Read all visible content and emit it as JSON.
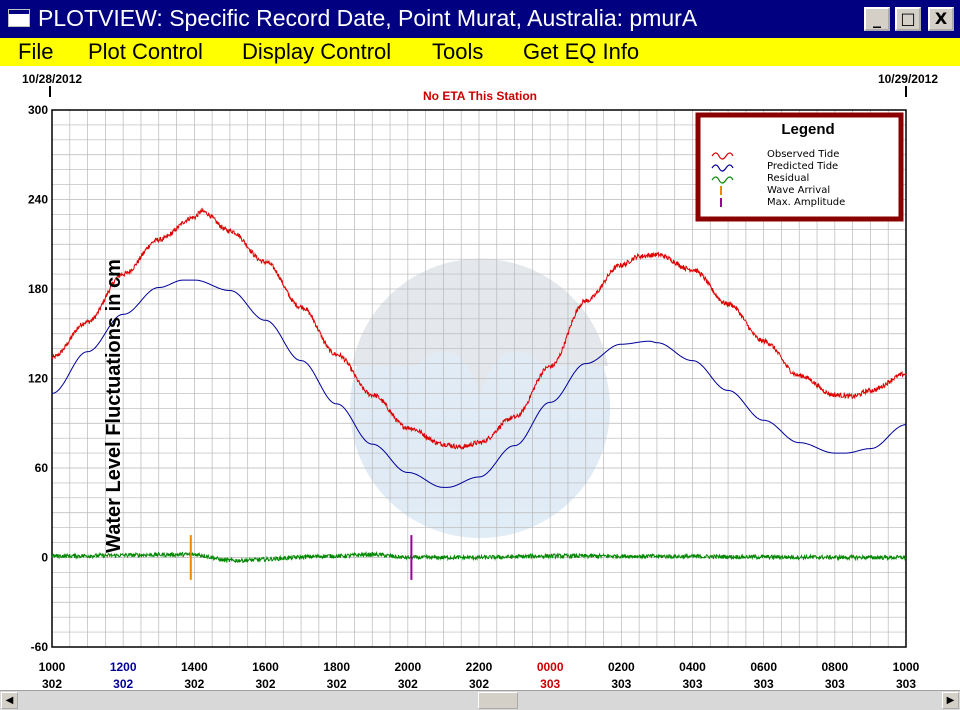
{
  "window": {
    "title": "PLOTVIEW: Specific Record Date, Point Murat, Australia: pmurA",
    "minimize_glyph": "_",
    "maximize_glyph": "□",
    "close_glyph": "X",
    "icon": "window-app-icon"
  },
  "menu": [
    "File",
    "Plot Control",
    "Display Control",
    "Tools",
    "Get EQ Info"
  ],
  "colors": {
    "titlebar": "#000080",
    "menubar": "#ffff00",
    "observed": "#dd0000",
    "predicted": "#000099",
    "residual": "#008800",
    "wave_arrival": "#ee8800",
    "max_amplitude": "#990099",
    "legend_border": "#8b0000",
    "blue_tick": "#000099",
    "red_tick": "#cc0000"
  },
  "chart_data": {
    "type": "line",
    "ylabel": "Water Level Fluctuations in cm",
    "ylim": [
      -60,
      300
    ],
    "yticks": [
      -60,
      0,
      60,
      120,
      180,
      240,
      300
    ],
    "x_unit": "hours after 1000 on day 302",
    "xlim": [
      0,
      24
    ],
    "date_left": "10/28/2012",
    "date_right": "10/29/2012",
    "annotation": "No ETA This Station",
    "grid": true,
    "legend_position": "top-right",
    "legend": {
      "title": "Legend",
      "entries": [
        "Observed Tide",
        "Predicted Tide",
        "Residual",
        "Wave Arrival",
        "Max. Amplitude"
      ]
    },
    "xticks": [
      {
        "time": "1000",
        "day": "302",
        "color": "black"
      },
      {
        "time": "1200",
        "day": "302",
        "color": "blue"
      },
      {
        "time": "1400",
        "day": "302",
        "color": "black"
      },
      {
        "time": "1600",
        "day": "302",
        "color": "black"
      },
      {
        "time": "1800",
        "day": "302",
        "color": "black"
      },
      {
        "time": "2000",
        "day": "302",
        "color": "black"
      },
      {
        "time": "2200",
        "day": "302",
        "color": "black"
      },
      {
        "time": "0000",
        "day": "303",
        "color": "red"
      },
      {
        "time": "0200",
        "day": "303",
        "color": "black"
      },
      {
        "time": "0400",
        "day": "303",
        "color": "black"
      },
      {
        "time": "0600",
        "day": "303",
        "color": "black"
      },
      {
        "time": "0800",
        "day": "303",
        "color": "black"
      },
      {
        "time": "1000",
        "day": "303",
        "color": "black"
      }
    ],
    "series": [
      {
        "name": "Observed Tide",
        "x": [
          0,
          1,
          2,
          3,
          4,
          4.2,
          5,
          6,
          7,
          8,
          9,
          10,
          11,
          11.5,
          12,
          13,
          14,
          15,
          16,
          16.5,
          17,
          18,
          19,
          20,
          21,
          22,
          22.5,
          23,
          24
        ],
        "y": [
          134,
          158,
          190,
          213,
          228,
          232,
          219,
          198,
          168,
          136,
          109,
          87,
          76,
          74,
          77,
          94,
          128,
          172,
          196,
          202,
          203,
          193,
          170,
          145,
          122,
          109,
          108,
          112,
          123
        ]
      },
      {
        "name": "Predicted Tide",
        "x": [
          0,
          1,
          2,
          3,
          3.7,
          4,
          5,
          6,
          7,
          8,
          9,
          10,
          11,
          11.1,
          12,
          13,
          14,
          15,
          16,
          16.8,
          17,
          18,
          19,
          20,
          21,
          22,
          22.3,
          23,
          24
        ],
        "y": [
          110,
          138,
          163,
          181,
          186,
          186,
          179,
          159,
          132,
          103,
          76,
          57,
          47,
          47,
          54,
          75,
          104,
          130,
          143,
          145,
          144,
          132,
          112,
          92,
          77,
          70,
          70,
          73,
          89
        ]
      },
      {
        "name": "Residual",
        "x": [
          0,
          4,
          5,
          8,
          9,
          10,
          12,
          14,
          24
        ],
        "y": [
          1,
          2,
          -2,
          1,
          2,
          0,
          0,
          1,
          0
        ]
      }
    ],
    "markers": [
      {
        "name": "Wave Arrival",
        "x": 3.9,
        "y_range": [
          -15,
          15
        ]
      },
      {
        "name": "Max. Amplitude",
        "x": 10.1,
        "y_range": [
          -15,
          15
        ]
      }
    ]
  }
}
